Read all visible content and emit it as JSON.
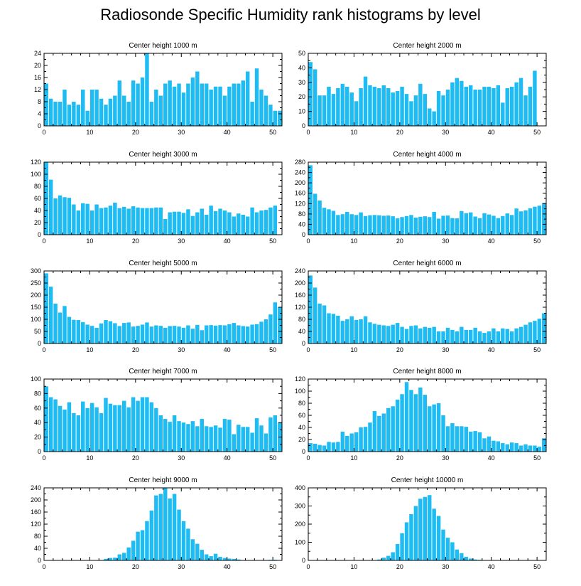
{
  "title": "Radiosonde Specific Humidity rank histograms by level",
  "bar_color": "#1ebcf2",
  "chart_data": [
    {
      "type": "bar",
      "title": "Center height 1000 m",
      "xlim": [
        0,
        52
      ],
      "ylim": [
        0,
        24
      ],
      "yticks": [
        0,
        4,
        8,
        12,
        16,
        20,
        24
      ],
      "xticks": [
        0,
        10,
        20,
        30,
        40,
        50
      ],
      "values": [
        14,
        9,
        8,
        8,
        12,
        7,
        8,
        7,
        12,
        5,
        12,
        12,
        9,
        7,
        9,
        10,
        15,
        10,
        8,
        15,
        14,
        16,
        24,
        8,
        12,
        10,
        14,
        15,
        13,
        14,
        11,
        14,
        16,
        18,
        14,
        14,
        12,
        13,
        13,
        10,
        13,
        14,
        14,
        15,
        18,
        8,
        19,
        12,
        10,
        7,
        5,
        5
      ]
    },
    {
      "type": "bar",
      "title": "Center height 2000 m",
      "xlim": [
        0,
        52
      ],
      "ylim": [
        0,
        50
      ],
      "yticks": [
        0,
        10,
        20,
        30,
        40,
        50
      ],
      "xticks": [
        0,
        10,
        20,
        30,
        40,
        50
      ],
      "values": [
        44,
        39,
        21,
        21,
        27,
        22,
        26,
        29,
        27,
        23,
        17,
        26,
        34,
        28,
        27,
        26,
        28,
        26,
        23,
        24,
        27,
        22,
        17,
        21,
        29,
        22,
        12,
        10,
        24,
        21,
        25,
        30,
        33,
        31,
        27,
        28,
        25,
        25,
        27,
        27,
        26,
        28,
        16,
        26,
        27,
        30,
        33,
        21,
        27,
        38,
        0,
        0
      ]
    },
    {
      "type": "bar",
      "title": "Center height 3000 m",
      "xlim": [
        0,
        52
      ],
      "ylim": [
        0,
        120
      ],
      "yticks": [
        0,
        20,
        40,
        60,
        80,
        100,
        120
      ],
      "xticks": [
        0,
        10,
        20,
        30,
        40,
        50
      ],
      "values": [
        120,
        91,
        60,
        65,
        62,
        61,
        50,
        40,
        52,
        51,
        40,
        50,
        44,
        45,
        48,
        53,
        44,
        46,
        43,
        47,
        45,
        44,
        44,
        44,
        45,
        45,
        26,
        37,
        38,
        38,
        36,
        42,
        31,
        37,
        43,
        33,
        48,
        39,
        43,
        40,
        37,
        30,
        35,
        33,
        30,
        45,
        37,
        40,
        41,
        45,
        48,
        0
      ]
    },
    {
      "type": "bar",
      "title": "Center height 4000 m",
      "xlim": [
        0,
        52
      ],
      "ylim": [
        0,
        280
      ],
      "yticks": [
        0,
        40,
        80,
        120,
        160,
        200,
        240,
        280
      ],
      "xticks": [
        0,
        10,
        20,
        30,
        40,
        50
      ],
      "values": [
        268,
        158,
        132,
        104,
        98,
        92,
        76,
        79,
        88,
        79,
        76,
        86,
        72,
        75,
        76,
        75,
        73,
        74,
        71,
        63,
        68,
        72,
        76,
        66,
        69,
        71,
        68,
        88,
        62,
        73,
        74,
        64,
        63,
        91,
        83,
        86,
        70,
        64,
        83,
        78,
        73,
        64,
        72,
        82,
        76,
        101,
        90,
        94,
        102,
        108,
        112,
        122
      ]
    },
    {
      "type": "bar",
      "title": "Center height 5000 m",
      "xlim": [
        0,
        52
      ],
      "ylim": [
        0,
        300
      ],
      "yticks": [
        0,
        50,
        100,
        150,
        200,
        250,
        300
      ],
      "xticks": [
        0,
        10,
        20,
        30,
        40,
        50
      ],
      "values": [
        290,
        235,
        165,
        128,
        155,
        110,
        98,
        97,
        88,
        78,
        73,
        65,
        83,
        97,
        92,
        84,
        72,
        85,
        87,
        70,
        73,
        78,
        87,
        70,
        75,
        73,
        65,
        72,
        73,
        70,
        65,
        75,
        61,
        77,
        55,
        75,
        76,
        74,
        76,
        75,
        80,
        85,
        75,
        72,
        70,
        78,
        80,
        90,
        100,
        120,
        170,
        150
      ]
    },
    {
      "type": "bar",
      "title": "Center height 6000 m",
      "xlim": [
        0,
        52
      ],
      "ylim": [
        0,
        240
      ],
      "yticks": [
        0,
        40,
        80,
        120,
        160,
        200,
        240
      ],
      "xticks": [
        0,
        10,
        20,
        30,
        40,
        50
      ],
      "values": [
        225,
        185,
        132,
        126,
        100,
        98,
        92,
        75,
        80,
        90,
        78,
        80,
        90,
        70,
        65,
        62,
        60,
        58,
        62,
        68,
        55,
        48,
        58,
        60,
        50,
        55,
        52,
        55,
        40,
        40,
        52,
        45,
        40,
        55,
        45,
        45,
        52,
        40,
        35,
        40,
        50,
        40,
        50,
        48,
        40,
        50,
        55,
        62,
        70,
        75,
        82,
        100
      ]
    },
    {
      "type": "bar",
      "title": "Center height 7000 m",
      "xlim": [
        0,
        52
      ],
      "ylim": [
        0,
        100
      ],
      "yticks": [
        0,
        20,
        40,
        60,
        80,
        100
      ],
      "xticks": [
        0,
        10,
        20,
        30,
        40,
        50
      ],
      "values": [
        90,
        75,
        72,
        63,
        58,
        68,
        53,
        50,
        69,
        60,
        67,
        61,
        53,
        74,
        66,
        64,
        64,
        70,
        61,
        75,
        70,
        75,
        75,
        68,
        60,
        50,
        45,
        41,
        50,
        42,
        40,
        38,
        42,
        35,
        45,
        35,
        34,
        36,
        33,
        45,
        44,
        24,
        37,
        34,
        34,
        26,
        46,
        36,
        25,
        47,
        50,
        40
      ]
    },
    {
      "type": "bar",
      "title": "Center height 8000 m",
      "xlim": [
        0,
        52
      ],
      "ylim": [
        0,
        120
      ],
      "yticks": [
        0,
        20,
        40,
        60,
        80,
        100,
        120
      ],
      "xticks": [
        0,
        10,
        20,
        30,
        40,
        50
      ],
      "values": [
        14,
        13,
        11,
        10,
        16,
        15,
        16,
        33,
        26,
        30,
        32,
        40,
        41,
        48,
        67,
        59,
        63,
        72,
        75,
        86,
        95,
        115,
        102,
        95,
        106,
        94,
        75,
        78,
        80,
        60,
        42,
        47,
        42,
        42,
        41,
        33,
        34,
        32,
        22,
        25,
        18,
        17,
        14,
        12,
        15,
        14,
        10,
        12,
        10,
        10,
        8,
        22
      ]
    },
    {
      "type": "bar",
      "title": "Center height 9000 m",
      "xlim": [
        0,
        52
      ],
      "ylim": [
        0,
        240
      ],
      "yticks": [
        0,
        40,
        80,
        120,
        160,
        200,
        240
      ],
      "xticks": [
        0,
        10,
        20,
        30,
        40,
        50
      ],
      "values": [
        0,
        0,
        0,
        0,
        0,
        0,
        0,
        0,
        0,
        0,
        0,
        0,
        0,
        5,
        8,
        9,
        20,
        25,
        43,
        65,
        95,
        100,
        130,
        165,
        215,
        220,
        240,
        205,
        220,
        168,
        130,
        105,
        70,
        55,
        35,
        20,
        14,
        22,
        12,
        8,
        6,
        5,
        3,
        1,
        1,
        1,
        0,
        1,
        0,
        2,
        2,
        0
      ]
    },
    {
      "type": "bar",
      "title": "Center height 10000 m",
      "xlim": [
        0,
        52
      ],
      "ylim": [
        0,
        400
      ],
      "yticks": [
        0,
        100,
        200,
        300,
        400
      ],
      "xticks": [
        0,
        10,
        20,
        30,
        40,
        50
      ],
      "values": [
        0,
        0,
        0,
        0,
        0,
        0,
        0,
        0,
        0,
        0,
        0,
        0,
        0,
        0,
        0,
        5,
        15,
        25,
        45,
        90,
        150,
        210,
        255,
        300,
        340,
        350,
        360,
        285,
        245,
        170,
        125,
        100,
        60,
        40,
        20,
        10,
        5,
        3,
        2,
        1,
        1,
        1,
        0,
        0,
        0,
        0,
        0,
        0,
        0,
        0,
        0,
        0
      ]
    }
  ]
}
